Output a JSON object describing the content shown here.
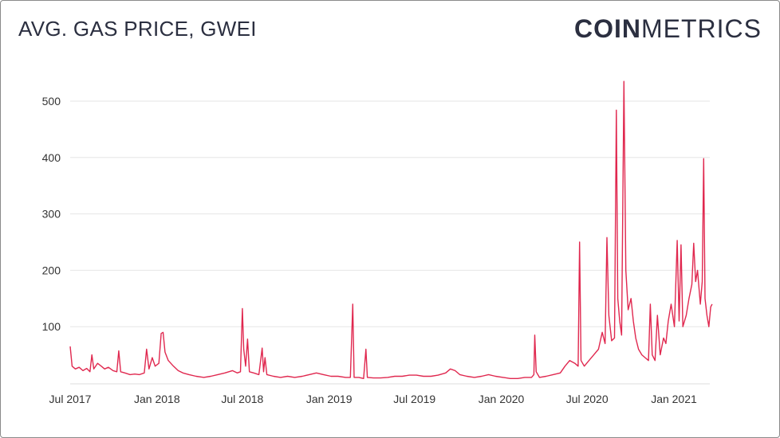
{
  "header": {
    "title": "AVG. GAS PRICE, GWEI"
  },
  "logo": {
    "bold": "COIN",
    "light": "METRICS"
  },
  "colors": {
    "line": "#e0284f",
    "grid": "#e6e6e6",
    "text": "#2b2f40"
  },
  "chart_data": {
    "type": "line",
    "title": "AVG. GAS PRICE, GWEI",
    "xlabel": "",
    "ylabel": "",
    "ylim": [
      0,
      560
    ],
    "y_ticks": [
      100,
      200,
      300,
      400,
      500
    ],
    "x_ticks": [
      "Jul 2017",
      "Jan 2018",
      "Jul 2018",
      "Jan 2019",
      "Jul 2019",
      "Jan 2020",
      "Jul 2020",
      "Jan 2021"
    ],
    "grid": "horizontal",
    "series": [
      {
        "values": [
          [
            "2017-07-01",
            65
          ],
          [
            "2017-07-05",
            30
          ],
          [
            "2017-07-12",
            25
          ],
          [
            "2017-07-20",
            28
          ],
          [
            "2017-07-28",
            22
          ],
          [
            "2017-08-05",
            26
          ],
          [
            "2017-08-12",
            20
          ],
          [
            "2017-08-16",
            50
          ],
          [
            "2017-08-20",
            25
          ],
          [
            "2017-08-28",
            35
          ],
          [
            "2017-09-05",
            30
          ],
          [
            "2017-09-12",
            25
          ],
          [
            "2017-09-20",
            28
          ],
          [
            "2017-09-30",
            22
          ],
          [
            "2017-10-08",
            20
          ],
          [
            "2017-10-12",
            57
          ],
          [
            "2017-10-16",
            20
          ],
          [
            "2017-10-25",
            18
          ],
          [
            "2017-11-05",
            15
          ],
          [
            "2017-11-15",
            16
          ],
          [
            "2017-11-25",
            15
          ],
          [
            "2017-12-05",
            18
          ],
          [
            "2017-12-10",
            60
          ],
          [
            "2017-12-15",
            25
          ],
          [
            "2017-12-22",
            45
          ],
          [
            "2017-12-28",
            30
          ],
          [
            "2018-01-05",
            35
          ],
          [
            "2018-01-10",
            88
          ],
          [
            "2018-01-14",
            90
          ],
          [
            "2018-01-18",
            55
          ],
          [
            "2018-01-25",
            40
          ],
          [
            "2018-02-05",
            30
          ],
          [
            "2018-02-15",
            22
          ],
          [
            "2018-02-25",
            18
          ],
          [
            "2018-03-10",
            15
          ],
          [
            "2018-03-25",
            12
          ],
          [
            "2018-04-10",
            10
          ],
          [
            "2018-04-25",
            12
          ],
          [
            "2018-05-10",
            15
          ],
          [
            "2018-05-25",
            18
          ],
          [
            "2018-06-10",
            22
          ],
          [
            "2018-06-20",
            18
          ],
          [
            "2018-06-27",
            20
          ],
          [
            "2018-07-01",
            132
          ],
          [
            "2018-07-04",
            60
          ],
          [
            "2018-07-08",
            30
          ],
          [
            "2018-07-12",
            78
          ],
          [
            "2018-07-16",
            20
          ],
          [
            "2018-07-25",
            18
          ],
          [
            "2018-08-05",
            15
          ],
          [
            "2018-08-12",
            62
          ],
          [
            "2018-08-15",
            20
          ],
          [
            "2018-08-18",
            45
          ],
          [
            "2018-08-22",
            15
          ],
          [
            "2018-09-05",
            12
          ],
          [
            "2018-09-20",
            10
          ],
          [
            "2018-10-05",
            12
          ],
          [
            "2018-10-20",
            10
          ],
          [
            "2018-11-05",
            12
          ],
          [
            "2018-11-20",
            15
          ],
          [
            "2018-12-05",
            18
          ],
          [
            "2018-12-20",
            15
          ],
          [
            "2019-01-05",
            12
          ],
          [
            "2019-01-20",
            12
          ],
          [
            "2019-02-05",
            10
          ],
          [
            "2019-02-15",
            10
          ],
          [
            "2019-02-20",
            140
          ],
          [
            "2019-02-23",
            10
          ],
          [
            "2019-03-05",
            10
          ],
          [
            "2019-03-15",
            8
          ],
          [
            "2019-03-20",
            60
          ],
          [
            "2019-03-23",
            10
          ],
          [
            "2019-04-05",
            9
          ],
          [
            "2019-04-20",
            9
          ],
          [
            "2019-05-05",
            10
          ],
          [
            "2019-05-20",
            12
          ],
          [
            "2019-06-05",
            12
          ],
          [
            "2019-06-20",
            14
          ],
          [
            "2019-07-05",
            14
          ],
          [
            "2019-07-20",
            12
          ],
          [
            "2019-08-05",
            12
          ],
          [
            "2019-08-20",
            14
          ],
          [
            "2019-09-05",
            18
          ],
          [
            "2019-09-15",
            25
          ],
          [
            "2019-09-25",
            22
          ],
          [
            "2019-10-05",
            15
          ],
          [
            "2019-10-20",
            12
          ],
          [
            "2019-11-05",
            10
          ],
          [
            "2019-11-20",
            12
          ],
          [
            "2019-12-05",
            15
          ],
          [
            "2019-12-20",
            12
          ],
          [
            "2020-01-05",
            10
          ],
          [
            "2020-01-20",
            8
          ],
          [
            "2020-02-05",
            8
          ],
          [
            "2020-02-20",
            10
          ],
          [
            "2020-03-05",
            10
          ],
          [
            "2020-03-10",
            15
          ],
          [
            "2020-03-12",
            85
          ],
          [
            "2020-03-15",
            20
          ],
          [
            "2020-03-22",
            10
          ],
          [
            "2020-04-05",
            12
          ],
          [
            "2020-04-20",
            15
          ],
          [
            "2020-05-05",
            18
          ],
          [
            "2020-05-15",
            30
          ],
          [
            "2020-05-25",
            40
          ],
          [
            "2020-06-05",
            35
          ],
          [
            "2020-06-12",
            30
          ],
          [
            "2020-06-15",
            250
          ],
          [
            "2020-06-18",
            40
          ],
          [
            "2020-06-25",
            30
          ],
          [
            "2020-07-05",
            40
          ],
          [
            "2020-07-15",
            50
          ],
          [
            "2020-07-25",
            60
          ],
          [
            "2020-08-02",
            90
          ],
          [
            "2020-08-08",
            70
          ],
          [
            "2020-08-12",
            258
          ],
          [
            "2020-08-16",
            120
          ],
          [
            "2020-08-22",
            75
          ],
          [
            "2020-08-28",
            80
          ],
          [
            "2020-09-01",
            484
          ],
          [
            "2020-09-04",
            150
          ],
          [
            "2020-09-08",
            110
          ],
          [
            "2020-09-12",
            85
          ],
          [
            "2020-09-17",
            535
          ],
          [
            "2020-09-21",
            200
          ],
          [
            "2020-09-26",
            130
          ],
          [
            "2020-10-02",
            150
          ],
          [
            "2020-10-07",
            110
          ],
          [
            "2020-10-12",
            80
          ],
          [
            "2020-10-18",
            60
          ],
          [
            "2020-10-25",
            50
          ],
          [
            "2020-11-01",
            45
          ],
          [
            "2020-11-08",
            40
          ],
          [
            "2020-11-12",
            140
          ],
          [
            "2020-11-16",
            50
          ],
          [
            "2020-11-22",
            40
          ],
          [
            "2020-11-27",
            120
          ],
          [
            "2020-12-03",
            50
          ],
          [
            "2020-12-10",
            80
          ],
          [
            "2020-12-15",
            70
          ],
          [
            "2020-12-20",
            110
          ],
          [
            "2020-12-26",
            140
          ],
          [
            "2021-01-02",
            100
          ],
          [
            "2021-01-08",
            253
          ],
          [
            "2021-01-12",
            110
          ],
          [
            "2021-01-16",
            245
          ],
          [
            "2021-01-20",
            100
          ],
          [
            "2021-01-27",
            120
          ],
          [
            "2021-02-02",
            150
          ],
          [
            "2021-02-08",
            175
          ],
          [
            "2021-02-12",
            248
          ],
          [
            "2021-02-16",
            180
          ],
          [
            "2021-02-20",
            200
          ],
          [
            "2021-02-26",
            140
          ],
          [
            "2021-03-02",
            180
          ],
          [
            "2021-03-05",
            398
          ],
          [
            "2021-03-08",
            150
          ],
          [
            "2021-03-12",
            120
          ],
          [
            "2021-03-16",
            100
          ],
          [
            "2021-03-20",
            135
          ],
          [
            "2021-03-23",
            140
          ]
        ]
      }
    ]
  }
}
